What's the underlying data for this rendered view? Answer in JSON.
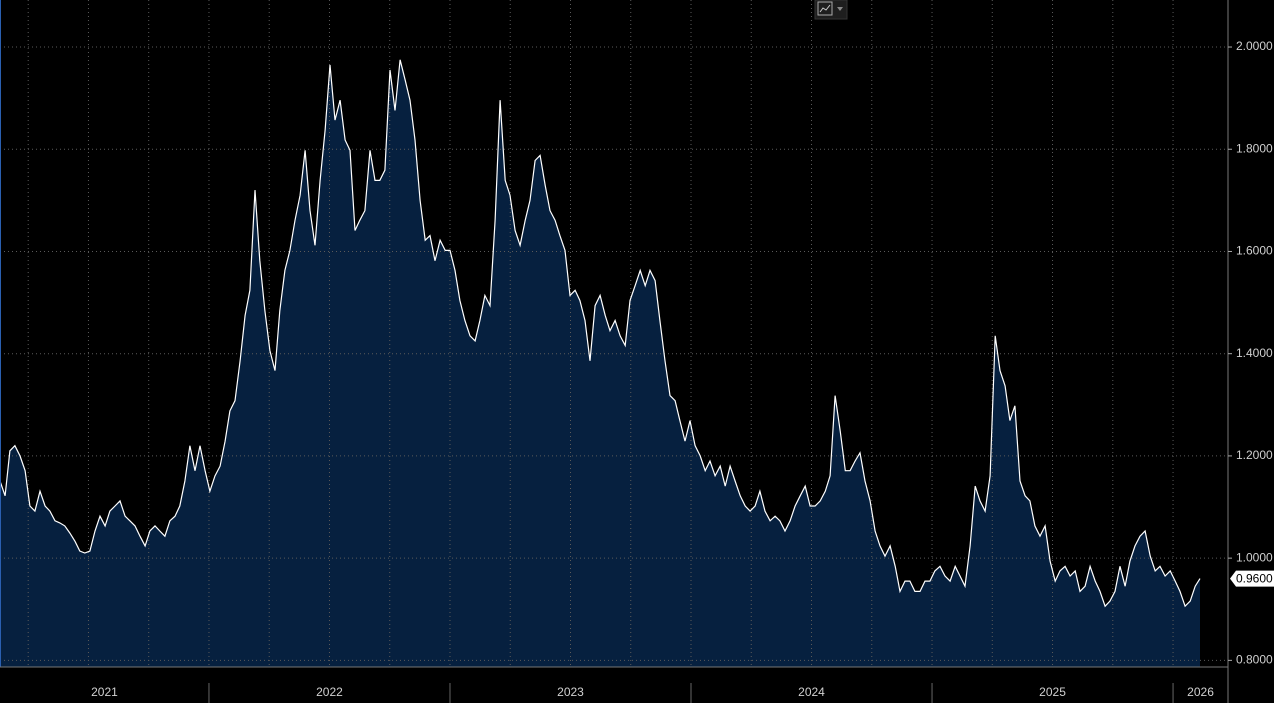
{
  "chart_data": {
    "type": "area",
    "color": "#ffffff",
    "fill": "#06203f",
    "background": "#000000",
    "grid": true,
    "xlim": [
      2021.133,
      2026.228
    ],
    "ylim": [
      0.787,
      2.092
    ],
    "yticks": [
      {
        "value": 0.8,
        "label": "0.8000"
      },
      {
        "value": 1.0,
        "label": "1.0000"
      },
      {
        "value": 1.2,
        "label": "1.2000"
      },
      {
        "value": 1.4,
        "label": "1.4000"
      },
      {
        "value": 1.6,
        "label": "1.6000"
      },
      {
        "value": 1.8,
        "label": "1.8000"
      },
      {
        "value": 2.0,
        "label": "2.0000"
      }
    ],
    "xticks": [
      {
        "value": 2021,
        "label": "2021"
      },
      {
        "value": 2022,
        "label": "2022"
      },
      {
        "value": 2023,
        "label": "2023"
      },
      {
        "value": 2024,
        "label": "2024"
      },
      {
        "value": 2025,
        "label": "2025"
      },
      {
        "value": 2026,
        "label": "2026"
      }
    ],
    "xgrid": [
      2021.25,
      2021.5,
      2021.75,
      2022,
      2022.25,
      2022.5,
      2022.75,
      2023,
      2023.25,
      2023.5,
      2023.75,
      2024,
      2024.25,
      2024.5,
      2024.75,
      2025,
      2025.25,
      2025.5,
      2025.75,
      2026
    ],
    "last_label": "0.9600",
    "x": [
      2021.133,
      2021.154,
      2021.174,
      2021.195,
      2021.216,
      2021.237,
      2021.257,
      2021.278,
      2021.299,
      2021.32,
      2021.34,
      2021.361,
      2021.381,
      2021.402,
      2021.423,
      2021.444,
      2021.464,
      2021.485,
      2021.506,
      2021.527,
      2021.548,
      2021.569,
      2021.589,
      2021.61,
      2021.631,
      2021.652,
      2021.672,
      2021.693,
      2021.714,
      2021.735,
      2021.755,
      2021.776,
      2021.796,
      2021.817,
      2021.838,
      2021.859,
      2021.879,
      2021.9,
      2021.921,
      2021.942,
      2021.963,
      2021.984,
      2022.004,
      2022.025,
      2022.046,
      2022.067,
      2022.087,
      2022.108,
      2022.129,
      2022.15,
      2022.17,
      2022.191,
      2022.211,
      2022.232,
      2022.253,
      2022.274,
      2022.294,
      2022.315,
      2022.336,
      2022.357,
      2022.378,
      2022.399,
      2022.419,
      2022.44,
      2022.461,
      2022.482,
      2022.502,
      2022.523,
      2022.544,
      2022.565,
      2022.585,
      2022.606,
      2022.626,
      2022.647,
      2022.668,
      2022.689,
      2022.709,
      2022.73,
      2022.751,
      2022.772,
      2022.793,
      2022.814,
      2022.834,
      2022.855,
      2022.876,
      2022.897,
      2022.917,
      2022.938,
      2022.959,
      2022.98,
      2023.0,
      2023.021,
      2023.041,
      2023.062,
      2023.083,
      2023.104,
      2023.124,
      2023.145,
      2023.166,
      2023.187,
      2023.208,
      2023.229,
      2023.249,
      2023.27,
      2023.291,
      2023.312,
      2023.332,
      2023.353,
      2023.374,
      2023.395,
      2023.415,
      2023.436,
      2023.456,
      2023.477,
      2023.498,
      2023.519,
      2023.539,
      2023.56,
      2023.581,
      2023.602,
      2023.623,
      2023.644,
      2023.664,
      2023.685,
      2023.706,
      2023.727,
      2023.747,
      2023.768,
      2023.789,
      2023.81,
      2023.83,
      2023.851,
      2023.871,
      2023.892,
      2023.913,
      2023.934,
      2023.954,
      2023.975,
      2023.996,
      2024.017,
      2024.038,
      2024.059,
      2024.079,
      2024.1,
      2024.121,
      2024.142,
      2024.162,
      2024.183,
      2024.204,
      2024.225,
      2024.245,
      2024.266,
      2024.286,
      2024.307,
      2024.328,
      2024.349,
      2024.369,
      2024.39,
      2024.411,
      2024.432,
      2024.453,
      2024.474,
      2024.494,
      2024.515,
      2024.536,
      2024.557,
      2024.577,
      2024.598,
      2024.619,
      2024.64,
      2024.66,
      2024.681,
      2024.701,
      2024.722,
      2024.743,
      2024.764,
      2024.784,
      2024.805,
      2024.826,
      2024.847,
      2024.867,
      2024.888,
      2024.908,
      2024.929,
      2024.95,
      2024.971,
      2024.991,
      2025.012,
      2025.033,
      2025.054,
      2025.075,
      2025.096,
      2025.116,
      2025.137,
      2025.158,
      2025.179,
      2025.199,
      2025.22,
      2025.241,
      2025.262,
      2025.282,
      2025.303,
      2025.323,
      2025.344,
      2025.365,
      2025.386,
      2025.406,
      2025.427,
      2025.448,
      2025.469,
      2025.49,
      2025.511,
      2025.531,
      2025.552,
      2025.573,
      2025.594,
      2025.614,
      2025.635,
      2025.656,
      2025.677,
      2025.697,
      2025.718,
      2025.738,
      2025.759,
      2025.78,
      2025.801,
      2025.821,
      2025.842,
      2025.863,
      2025.884,
      2025.905,
      2025.926,
      2025.946,
      2025.967,
      2025.988,
      2026.009,
      2026.029,
      2026.05,
      2026.071,
      2026.092,
      2026.112
    ],
    "values": [
      1.151,
      1.122,
      1.21,
      1.22,
      1.2,
      1.171,
      1.102,
      1.092,
      1.131,
      1.102,
      1.092,
      1.073,
      1.069,
      1.063,
      1.049,
      1.033,
      1.014,
      1.01,
      1.014,
      1.053,
      1.082,
      1.063,
      1.092,
      1.102,
      1.112,
      1.082,
      1.073,
      1.063,
      1.043,
      1.024,
      1.053,
      1.063,
      1.053,
      1.043,
      1.073,
      1.082,
      1.102,
      1.151,
      1.22,
      1.171,
      1.22,
      1.171,
      1.131,
      1.161,
      1.18,
      1.229,
      1.288,
      1.308,
      1.386,
      1.475,
      1.524,
      1.72,
      1.582,
      1.484,
      1.406,
      1.367,
      1.484,
      1.563,
      1.602,
      1.661,
      1.71,
      1.798,
      1.68,
      1.612,
      1.739,
      1.837,
      1.965,
      1.857,
      1.896,
      1.818,
      1.798,
      1.641,
      1.661,
      1.68,
      1.798,
      1.739,
      1.739,
      1.759,
      1.955,
      1.876,
      1.975,
      1.935,
      1.896,
      1.818,
      1.7,
      1.622,
      1.631,
      1.582,
      1.622,
      1.602,
      1.602,
      1.563,
      1.504,
      1.465,
      1.435,
      1.425,
      1.465,
      1.514,
      1.494,
      1.661,
      1.896,
      1.739,
      1.71,
      1.641,
      1.612,
      1.661,
      1.7,
      1.778,
      1.788,
      1.729,
      1.68,
      1.661,
      1.631,
      1.602,
      1.514,
      1.524,
      1.504,
      1.465,
      1.386,
      1.494,
      1.514,
      1.475,
      1.445,
      1.465,
      1.435,
      1.416,
      1.504,
      1.533,
      1.563,
      1.533,
      1.563,
      1.543,
      1.465,
      1.386,
      1.318,
      1.308,
      1.269,
      1.229,
      1.269,
      1.22,
      1.2,
      1.171,
      1.19,
      1.161,
      1.18,
      1.141,
      1.18,
      1.151,
      1.122,
      1.102,
      1.092,
      1.102,
      1.131,
      1.092,
      1.073,
      1.082,
      1.073,
      1.053,
      1.073,
      1.102,
      1.122,
      1.141,
      1.102,
      1.102,
      1.112,
      1.131,
      1.161,
      1.318,
      1.249,
      1.171,
      1.171,
      1.19,
      1.206,
      1.151,
      1.112,
      1.053,
      1.024,
      1.004,
      1.024,
      0.984,
      0.935,
      0.955,
      0.955,
      0.935,
      0.935,
      0.955,
      0.955,
      0.975,
      0.984,
      0.965,
      0.955,
      0.984,
      0.965,
      0.945,
      1.024,
      1.141,
      1.112,
      1.092,
      1.161,
      1.435,
      1.367,
      1.337,
      1.269,
      1.298,
      1.151,
      1.122,
      1.112,
      1.063,
      1.043,
      1.063,
      0.994,
      0.955,
      0.975,
      0.984,
      0.965,
      0.975,
      0.935,
      0.945,
      0.984,
      0.955,
      0.935,
      0.906,
      0.916,
      0.935,
      0.984,
      0.945,
      0.994,
      1.024,
      1.043,
      1.053,
      1.004,
      0.975,
      0.984,
      0.965,
      0.975,
      0.955,
      0.935,
      0.906,
      0.916,
      0.945,
      0.96
    ]
  }
}
